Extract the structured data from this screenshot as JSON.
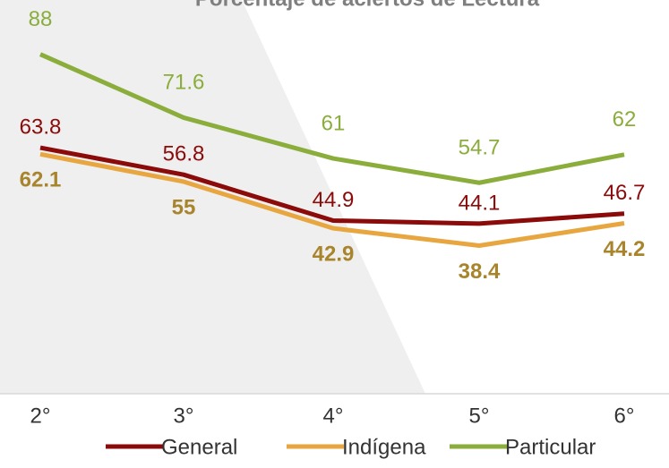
{
  "chart_data": {
    "type": "line",
    "title": "Porcentaje de aciertos de Lectura",
    "categories": [
      "2°",
      "3°",
      "4°",
      "5°",
      "6°"
    ],
    "series": [
      {
        "name": "General",
        "color": "#8b0a0a",
        "values": [
          63.8,
          56.8,
          44.9,
          44.1,
          46.7
        ]
      },
      {
        "name": "Indígena",
        "color": "#e8a640",
        "values": [
          62.1,
          55.0,
          42.9,
          38.4,
          44.2
        ]
      },
      {
        "name": "Particular",
        "color": "#8aad3c",
        "values": [
          88.0,
          71.6,
          61.0,
          54.7,
          62.0
        ]
      }
    ],
    "ylim": [
      0,
      100
    ],
    "legend": "bottom"
  }
}
